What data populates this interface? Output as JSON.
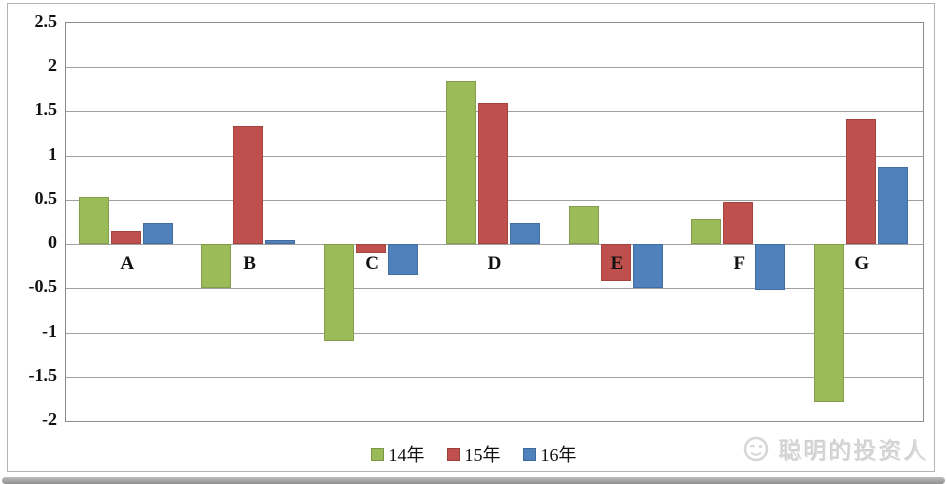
{
  "chart_data": {
    "type": "bar",
    "title": "",
    "xlabel": "",
    "ylabel": "",
    "categories": [
      "A",
      "B",
      "C",
      "D",
      "E",
      "F",
      "G"
    ],
    "series": [
      {
        "name": "14年",
        "color": "#9BBB59",
        "values": [
          0.53,
          -0.5,
          -1.1,
          1.84,
          0.43,
          0.28,
          -1.79
        ]
      },
      {
        "name": "15年",
        "color": "#C0504D",
        "values": [
          0.15,
          1.33,
          -0.1,
          1.6,
          -0.42,
          0.48,
          1.42
        ]
      },
      {
        "name": "16年",
        "color": "#4F81BD",
        "values": [
          0.24,
          0.05,
          -0.35,
          0.24,
          -0.5,
          -0.52,
          0.87
        ]
      }
    ],
    "ylim": [
      -2,
      2.5
    ],
    "ytick_interval": 0.5,
    "ytick_labels": [
      "2.5",
      "2",
      "1.5",
      "1",
      "0.5",
      "0",
      "-0.5",
      "-1",
      "-1.5",
      "-2"
    ],
    "grid": true,
    "legend_position": "bottom-center"
  },
  "watermark": {
    "text": "聪明的投资人"
  }
}
